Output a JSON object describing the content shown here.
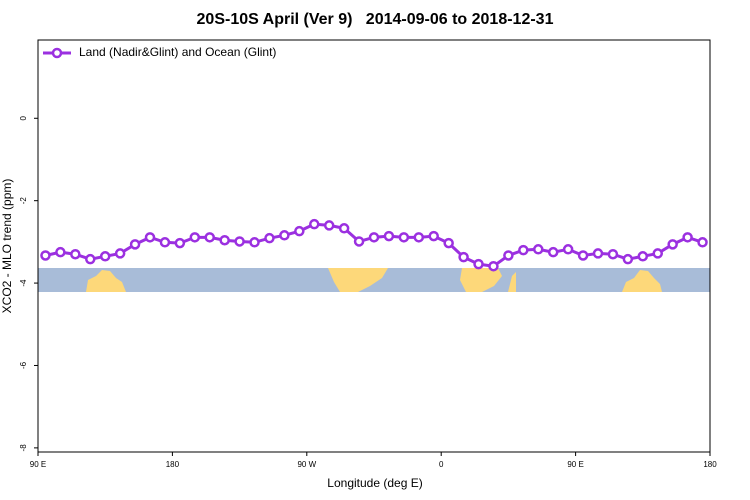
{
  "chart_data": {
    "type": "line",
    "title": "20S-10S April (Ver 9)   2014-09-06 to 2018-12-31",
    "xlabel": "Longitude (deg E)",
    "ylabel": "XCO2 - MLO trend (ppm)",
    "xlim": [
      90,
      540
    ],
    "ylim": [
      1.9,
      -8.1
    ],
    "xticks": [
      {
        "value": 90,
        "label": "90 E"
      },
      180,
      {
        "value": 270,
        "label": "90 W"
      },
      {
        "value": 360,
        "label": "0"
      },
      {
        "value": 450,
        "label": "90 E"
      },
      {
        "value": 540,
        "label": "180"
      }
    ],
    "yticks": [
      0,
      -2,
      -4,
      -6,
      -8
    ],
    "legend": "top-left",
    "x": [
      95,
      105,
      115,
      125,
      135,
      145,
      155,
      165,
      175,
      185,
      195,
      205,
      215,
      225,
      235,
      245,
      255,
      265,
      275,
      285,
      295,
      305,
      315,
      325,
      335,
      345,
      355,
      365,
      375,
      385,
      395,
      405,
      415,
      425,
      435,
      445,
      455,
      465,
      475,
      485,
      495,
      505,
      515,
      525,
      535
    ],
    "series": [
      {
        "name": "Land (Nadir&Glint) and Ocean (Glint)",
        "color": "#9b30e0",
        "values": [
          -3.33,
          -3.25,
          -3.3,
          -3.42,
          -3.35,
          -3.28,
          -3.06,
          -2.89,
          -3.01,
          -3.03,
          -2.89,
          -2.89,
          -2.96,
          -2.99,
          -3.01,
          -2.91,
          -2.84,
          -2.74,
          -2.57,
          -2.6,
          -2.67,
          -2.99,
          -2.89,
          -2.86,
          -2.89,
          -2.89,
          -2.86,
          -3.03,
          -3.37,
          -3.54,
          -3.59,
          -3.33,
          -3.2,
          -3.18,
          -3.25,
          -3.18,
          -3.33,
          -3.28,
          -3.3,
          -3.42,
          -3.35,
          -3.28,
          -3.06,
          -2.89,
          -3.01
        ]
      }
    ]
  }
}
